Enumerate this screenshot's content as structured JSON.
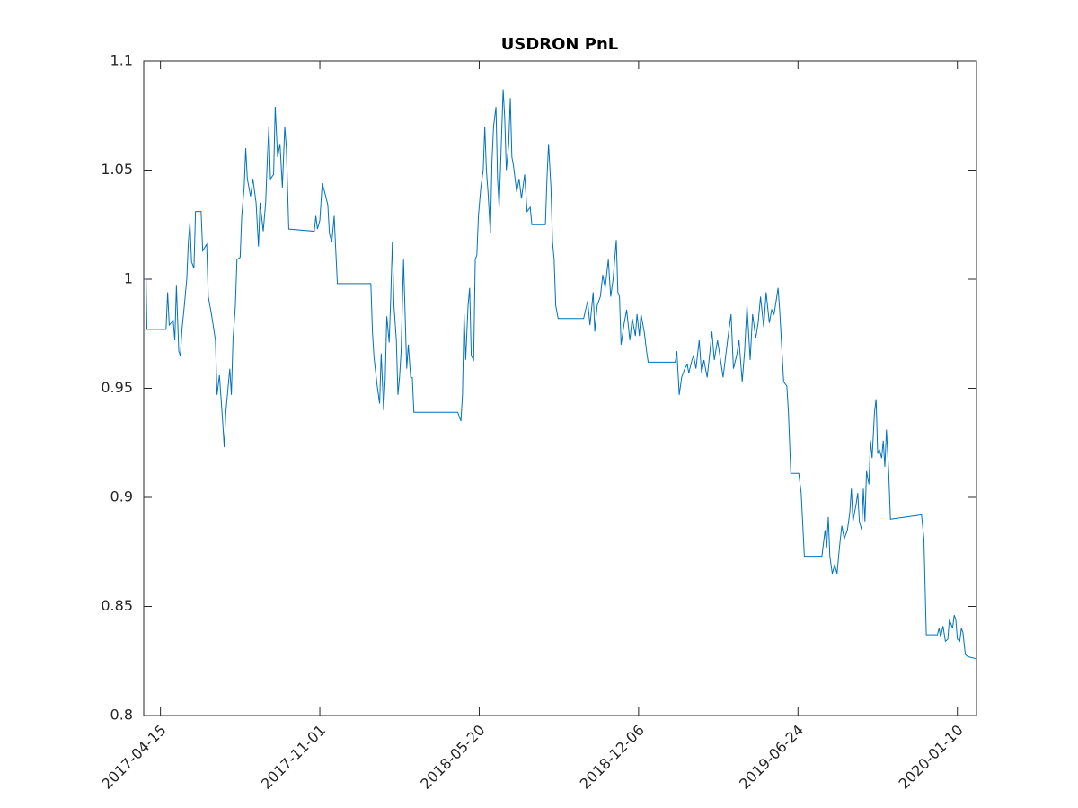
{
  "chart_data": {
    "type": "line",
    "title": "USDRON PnL",
    "x": [
      "2017-03-25",
      "2017-03-28",
      "2017-03-29",
      "2017-04-22",
      "2017-04-24",
      "2017-04-26",
      "2017-05-01",
      "2017-05-03",
      "2017-05-05",
      "2017-05-08",
      "2017-05-10",
      "2017-05-12",
      "2017-05-15",
      "2017-05-18",
      "2017-05-20",
      "2017-05-22",
      "2017-05-24",
      "2017-05-27",
      "2017-05-29",
      "2017-06-05",
      "2017-06-07",
      "2017-06-12",
      "2017-06-14",
      "2017-06-18",
      "2017-06-23",
      "2017-06-25",
      "2017-06-28",
      "2017-07-02",
      "2017-07-04",
      "2017-07-06",
      "2017-07-11",
      "2017-07-13",
      "2017-07-15",
      "2017-07-18",
      "2017-07-20",
      "2017-07-24",
      "2017-07-26",
      "2017-07-29",
      "2017-07-31",
      "2017-08-02",
      "2017-08-06",
      "2017-08-09",
      "2017-08-13",
      "2017-08-16",
      "2017-08-18",
      "2017-08-22",
      "2017-08-25",
      "2017-08-27",
      "2017-08-29",
      "2017-08-31",
      "2017-09-04",
      "2017-09-06",
      "2017-09-09",
      "2017-09-12",
      "2017-09-15",
      "2017-09-18",
      "2017-09-20",
      "2017-09-23",
      "2017-10-25",
      "2017-10-27",
      "2017-10-29",
      "2017-11-01",
      "2017-11-04",
      "2017-11-07",
      "2017-11-11",
      "2017-11-13",
      "2017-11-16",
      "2017-11-19",
      "2017-11-21",
      "2017-11-23",
      "2018-01-04",
      "2018-01-06",
      "2018-01-08",
      "2018-01-12",
      "2018-01-15",
      "2018-01-17",
      "2018-01-20",
      "2018-01-22",
      "2018-01-24",
      "2018-01-27",
      "2018-01-29",
      "2018-01-31",
      "2018-02-02",
      "2018-02-05",
      "2018-02-07",
      "2018-02-09",
      "2018-02-11",
      "2018-02-14",
      "2018-02-16",
      "2018-02-18",
      "2018-02-20",
      "2018-02-23",
      "2018-02-25",
      "2018-02-27",
      "2018-04-23",
      "2018-04-27",
      "2018-04-29",
      "2018-05-01",
      "2018-05-03",
      "2018-05-06",
      "2018-05-08",
      "2018-05-10",
      "2018-05-13",
      "2018-05-15",
      "2018-05-17",
      "2018-05-19",
      "2018-05-22",
      "2018-05-25",
      "2018-05-27",
      "2018-05-29",
      "2018-05-31",
      "2018-06-03",
      "2018-06-05",
      "2018-06-07",
      "2018-06-10",
      "2018-06-12",
      "2018-06-14",
      "2018-06-16",
      "2018-06-19",
      "2018-06-21",
      "2018-06-23",
      "2018-06-26",
      "2018-06-28",
      "2018-06-30",
      "2018-07-02",
      "2018-07-06",
      "2018-07-09",
      "2018-07-12",
      "2018-07-16",
      "2018-07-19",
      "2018-07-23",
      "2018-07-25",
      "2018-08-11",
      "2018-08-13",
      "2018-08-15",
      "2018-08-18",
      "2018-08-20",
      "2018-08-22",
      "2018-08-24",
      "2018-08-27",
      "2018-09-28",
      "2018-10-03",
      "2018-10-06",
      "2018-10-10",
      "2018-10-12",
      "2018-10-15",
      "2018-10-19",
      "2018-10-22",
      "2018-10-25",
      "2018-10-29",
      "2018-11-01",
      "2018-11-04",
      "2018-11-08",
      "2018-11-10",
      "2018-11-12",
      "2018-11-14",
      "2018-11-18",
      "2018-11-21",
      "2018-11-25",
      "2018-11-28",
      "2018-12-02",
      "2018-12-04",
      "2018-12-07",
      "2018-12-09",
      "2018-12-13",
      "2018-12-16",
      "2018-12-18",
      "2019-01-21",
      "2019-01-23",
      "2019-01-26",
      "2019-01-29",
      "2019-02-02",
      "2019-02-05",
      "2019-02-07",
      "2019-02-11",
      "2019-02-13",
      "2019-02-16",
      "2019-02-20",
      "2019-02-23",
      "2019-02-26",
      "2019-03-02",
      "2019-03-05",
      "2019-03-08",
      "2019-03-11",
      "2019-03-15",
      "2019-03-18",
      "2019-03-22",
      "2019-03-25",
      "2019-03-28",
      "2019-04-01",
      "2019-04-04",
      "2019-04-08",
      "2019-04-11",
      "2019-04-15",
      "2019-04-18",
      "2019-04-21",
      "2019-04-25",
      "2019-04-28",
      "2019-05-02",
      "2019-05-05",
      "2019-05-08",
      "2019-05-12",
      "2019-05-15",
      "2019-05-19",
      "2019-05-22",
      "2019-05-25",
      "2019-05-28",
      "2019-05-30",
      "2019-06-01",
      "2019-06-06",
      "2019-06-10",
      "2019-06-12",
      "2019-06-15",
      "2019-06-25",
      "2019-06-28",
      "2019-07-02",
      "2019-07-24",
      "2019-07-28",
      "2019-07-30",
      "2019-08-01",
      "2019-08-03",
      "2019-08-06",
      "2019-08-09",
      "2019-08-12",
      "2019-08-15",
      "2019-08-18",
      "2019-08-21",
      "2019-08-25",
      "2019-08-28",
      "2019-08-30",
      "2019-09-01",
      "2019-09-05",
      "2019-09-07",
      "2019-09-09",
      "2019-09-12",
      "2019-09-14",
      "2019-09-16",
      "2019-09-18",
      "2019-09-21",
      "2019-09-23",
      "2019-09-25",
      "2019-09-28",
      "2019-09-30",
      "2019-10-02",
      "2019-10-04",
      "2019-10-07",
      "2019-10-09",
      "2019-10-11",
      "2019-10-13",
      "2019-10-16",
      "2019-10-18",
      "2019-11-26",
      "2019-11-29",
      "2019-12-02",
      "2019-12-16",
      "2019-12-18",
      "2019-12-20",
      "2019-12-23",
      "2019-12-26",
      "2019-12-29",
      "2019-12-31",
      "2020-01-04",
      "2020-01-06",
      "2020-01-08",
      "2020-01-10",
      "2020-01-13",
      "2020-01-15",
      "2020-01-17",
      "2020-01-20",
      "2020-01-23",
      "2020-02-03"
    ],
    "values": [
      1.0,
      1.0,
      0.977,
      0.977,
      0.994,
      0.979,
      0.981,
      0.972,
      0.997,
      0.967,
      0.965,
      0.977,
      0.988,
      1.0,
      1.017,
      1.026,
      1.008,
      1.005,
      1.031,
      1.031,
      1.013,
      1.016,
      0.992,
      0.984,
      0.972,
      0.947,
      0.956,
      0.935,
      0.923,
      0.939,
      0.959,
      0.947,
      0.972,
      0.988,
      1.009,
      1.01,
      1.029,
      1.042,
      1.06,
      1.046,
      1.038,
      1.046,
      1.035,
      1.015,
      1.035,
      1.022,
      1.035,
      1.054,
      1.07,
      1.046,
      1.048,
      1.079,
      1.056,
      1.062,
      1.042,
      1.07,
      1.06,
      1.023,
      1.022,
      1.029,
      1.023,
      1.027,
      1.044,
      1.04,
      1.034,
      1.021,
      1.017,
      1.029,
      1.013,
      0.998,
      0.998,
      0.976,
      0.964,
      0.951,
      0.943,
      0.966,
      0.94,
      0.954,
      0.983,
      0.971,
      0.992,
      1.017,
      0.988,
      0.972,
      0.947,
      0.955,
      0.967,
      1.009,
      0.984,
      0.959,
      0.97,
      0.955,
      0.955,
      0.939,
      0.939,
      0.935,
      0.947,
      0.984,
      0.963,
      0.988,
      0.996,
      0.965,
      0.963,
      1.009,
      1.011,
      1.029,
      1.042,
      1.05,
      1.07,
      1.05,
      1.04,
      1.021,
      1.054,
      1.07,
      1.079,
      1.046,
      1.033,
      1.054,
      1.087,
      1.074,
      1.05,
      1.062,
      1.083,
      1.056,
      1.052,
      1.04,
      1.046,
      1.037,
      1.048,
      1.031,
      1.033,
      1.025,
      1.025,
      1.046,
      1.062,
      1.042,
      1.017,
      1.009,
      0.988,
      0.982,
      0.982,
      0.99,
      0.979,
      0.994,
      0.976,
      0.988,
      0.992,
      1.002,
      0.996,
      1.009,
      0.992,
      1.0,
      1.018,
      0.994,
      0.992,
      0.97,
      0.98,
      0.986,
      0.972,
      0.982,
      0.974,
      0.984,
      0.974,
      0.984,
      0.976,
      0.967,
      0.962,
      0.962,
      0.967,
      0.947,
      0.955,
      0.959,
      0.961,
      0.957,
      0.963,
      0.965,
      0.959,
      0.972,
      0.957,
      0.963,
      0.955,
      0.965,
      0.976,
      0.963,
      0.972,
      0.965,
      0.955,
      0.964,
      0.973,
      0.984,
      0.959,
      0.965,
      0.972,
      0.953,
      0.967,
      0.988,
      0.963,
      0.984,
      0.973,
      0.98,
      0.992,
      0.978,
      0.994,
      0.98,
      0.986,
      0.984,
      0.991,
      0.996,
      0.986,
      0.953,
      0.951,
      0.939,
      0.911,
      0.911,
      0.902,
      0.873,
      0.873,
      0.885,
      0.877,
      0.891,
      0.873,
      0.865,
      0.869,
      0.865,
      0.877,
      0.887,
      0.881,
      0.885,
      0.893,
      0.904,
      0.889,
      0.897,
      0.902,
      0.889,
      0.885,
      0.904,
      0.889,
      0.912,
      0.906,
      0.926,
      0.918,
      0.939,
      0.945,
      0.92,
      0.922,
      0.918,
      0.926,
      0.914,
      0.931,
      0.91,
      0.89,
      0.892,
      0.881,
      0.837,
      0.837,
      0.84,
      0.836,
      0.841,
      0.834,
      0.835,
      0.844,
      0.84,
      0.846,
      0.844,
      0.835,
      0.834,
      0.84,
      0.838,
      0.828,
      0.827,
      0.826
    ],
    "color": "#0072bd",
    "xlim": [
      "2017-03-25",
      "2020-02-03"
    ],
    "xticks": [
      "2017-04-15",
      "2017-11-01",
      "2018-05-20",
      "2018-12-06",
      "2019-06-24",
      "2020-01-10"
    ],
    "ylim": [
      0.8,
      1.1
    ],
    "yticks": [
      0.8,
      0.85,
      0.9,
      0.95,
      1,
      1.05,
      1.1
    ]
  }
}
